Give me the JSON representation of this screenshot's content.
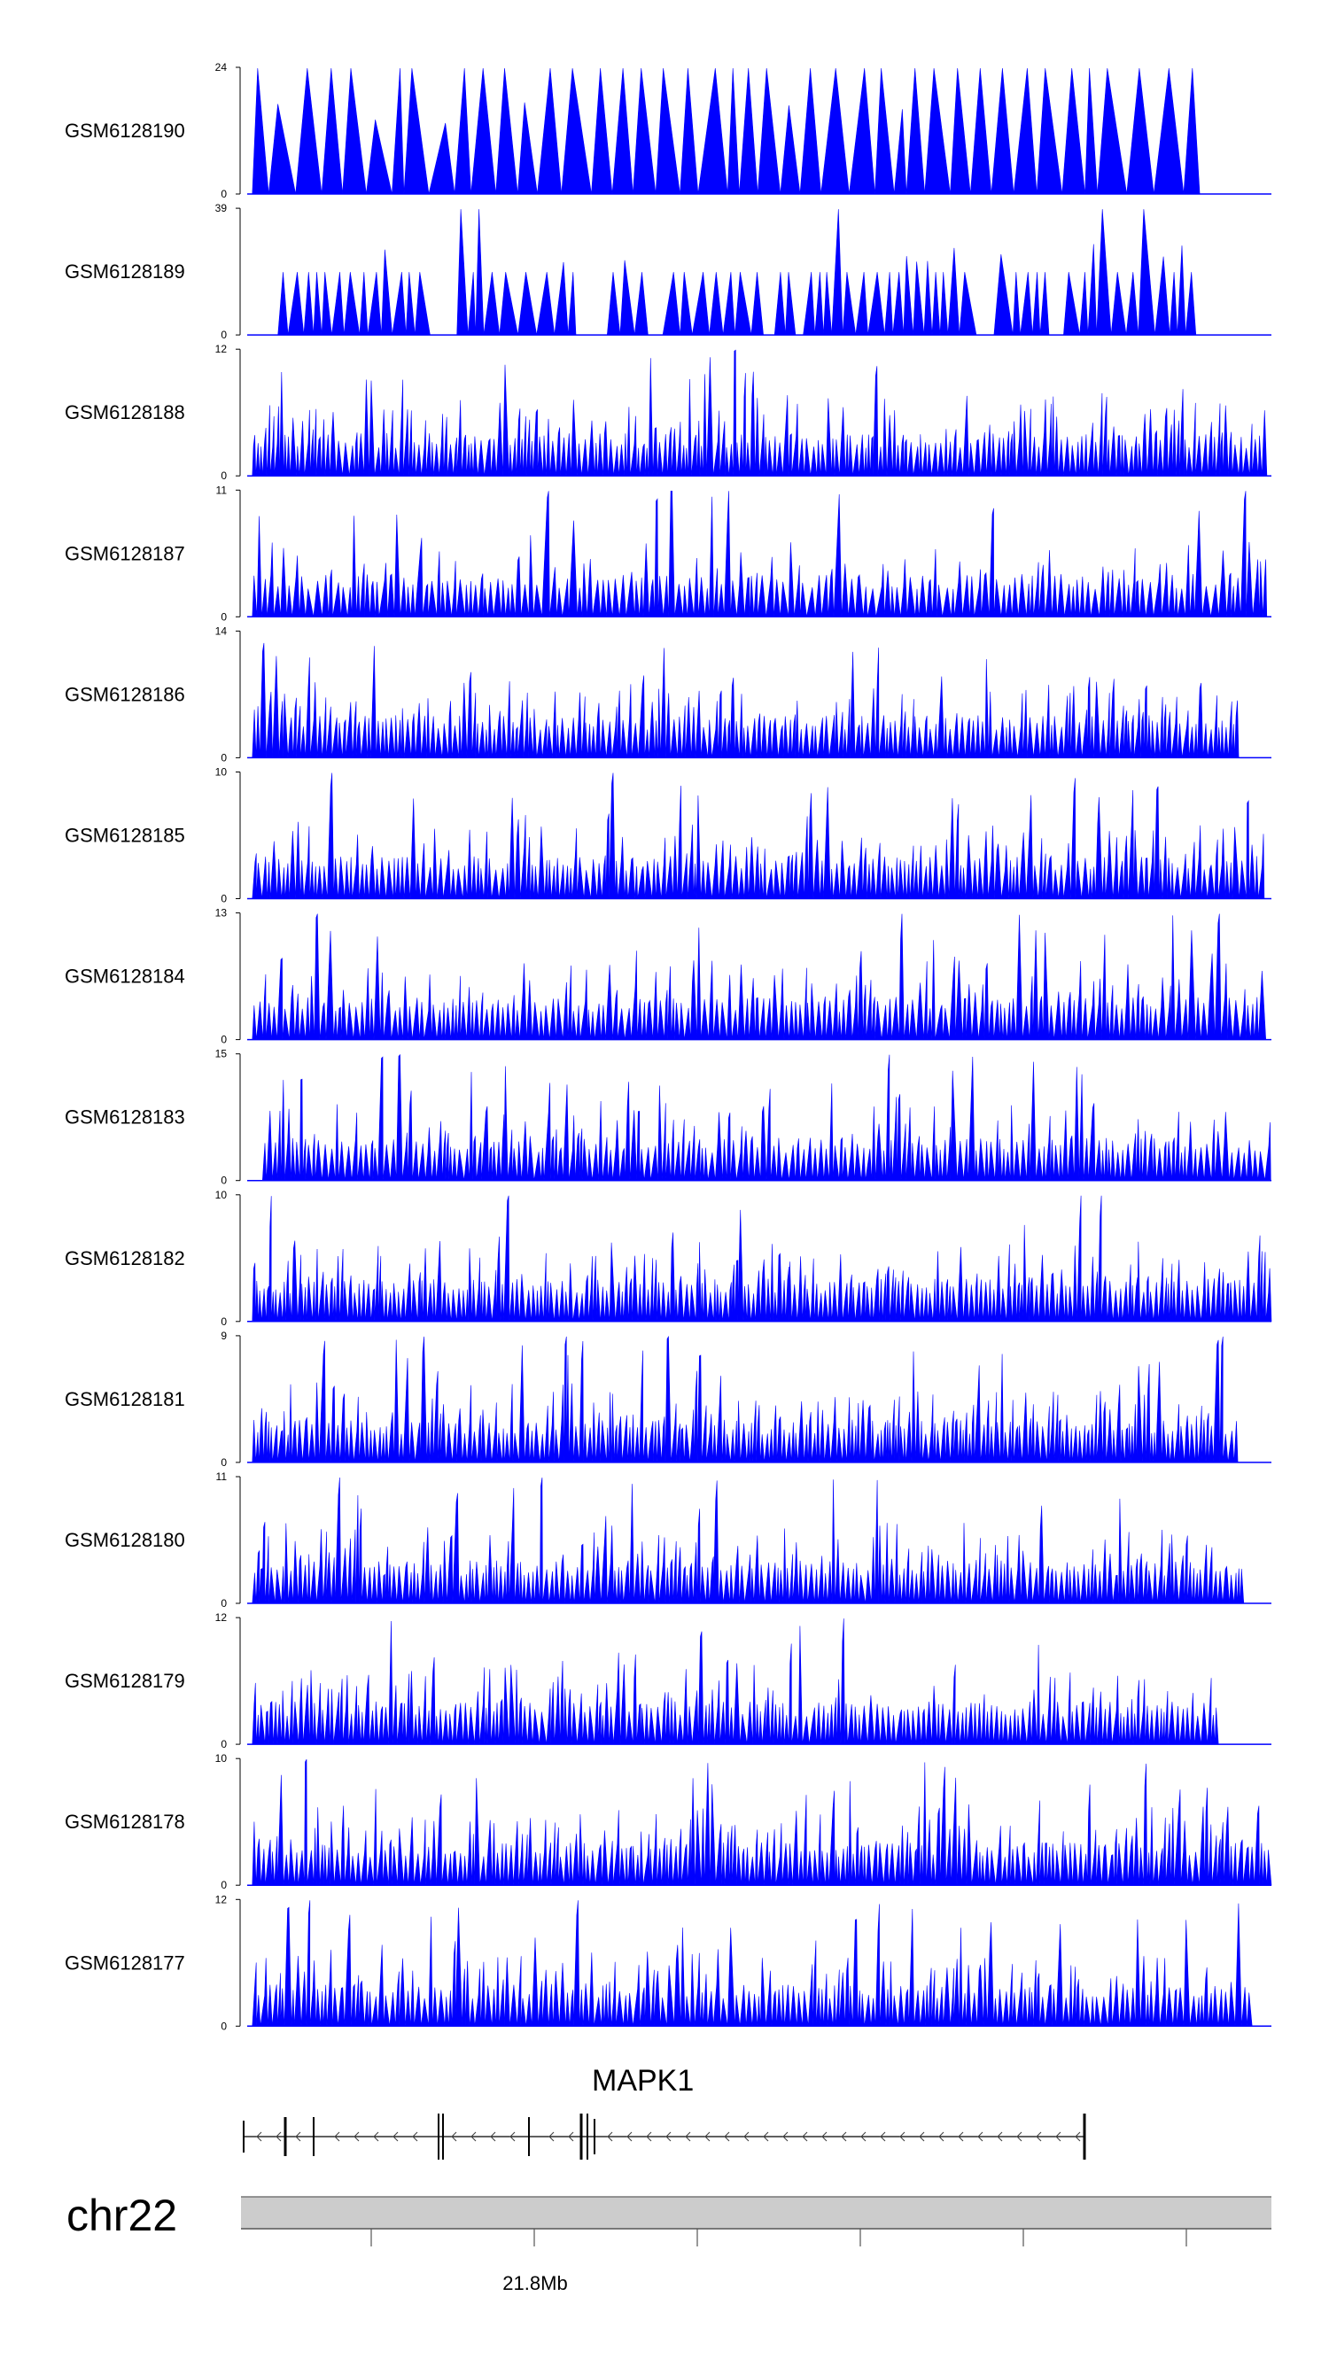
{
  "chart_data": {
    "type": "area",
    "description_note": "Genome browser coverage tracks",
    "color": "#0000ff",
    "tracks": [
      {
        "name": "GSM6128190",
        "ymax": 24,
        "ymin": 0,
        "start_frac": 0.005,
        "end_frac": 0.93,
        "peaks": 60,
        "seed": 11,
        "style": "wide"
      },
      {
        "name": "GSM6128189",
        "ymax": 39,
        "ymin": 0,
        "start_frac": 0.03,
        "end_frac": 0.995,
        "peaks": 75,
        "seed": 23,
        "style": "medium"
      },
      {
        "name": "GSM6128188",
        "ymax": 12,
        "ymin": 0,
        "start_frac": 0.005,
        "end_frac": 1.0,
        "peaks": 220,
        "seed": 37,
        "style": "dense"
      },
      {
        "name": "GSM6128187",
        "ymax": 11,
        "ymin": 0,
        "start_frac": 0.005,
        "end_frac": 1.0,
        "peaks": 170,
        "seed": 41,
        "style": "dense"
      },
      {
        "name": "GSM6128186",
        "ymax": 14,
        "ymin": 0,
        "start_frac": 0.005,
        "end_frac": 1.0,
        "peaks": 210,
        "seed": 53,
        "style": "dense"
      },
      {
        "name": "GSM6128185",
        "ymax": 10,
        "ymin": 0,
        "start_frac": 0.005,
        "end_frac": 1.0,
        "peaks": 200,
        "seed": 61,
        "style": "dense"
      },
      {
        "name": "GSM6128184",
        "ymax": 13,
        "ymin": 0,
        "start_frac": 0.005,
        "end_frac": 1.0,
        "peaks": 190,
        "seed": 71,
        "style": "dense"
      },
      {
        "name": "GSM6128183",
        "ymax": 15,
        "ymin": 0,
        "start_frac": 0.015,
        "end_frac": 1.0,
        "peaks": 200,
        "seed": 83,
        "style": "dense"
      },
      {
        "name": "GSM6128182",
        "ymax": 10,
        "ymin": 0,
        "start_frac": 0.005,
        "end_frac": 1.0,
        "peaks": 240,
        "seed": 97,
        "style": "dense"
      },
      {
        "name": "GSM6128181",
        "ymax": 9,
        "ymin": 0,
        "start_frac": 0.005,
        "end_frac": 1.0,
        "peaks": 230,
        "seed": 101,
        "style": "dense"
      },
      {
        "name": "GSM6128180",
        "ymax": 11,
        "ymin": 0,
        "start_frac": 0.005,
        "end_frac": 1.0,
        "peaks": 220,
        "seed": 113,
        "style": "dense"
      },
      {
        "name": "GSM6128179",
        "ymax": 12,
        "ymin": 0,
        "start_frac": 0.005,
        "end_frac": 1.0,
        "peaks": 210,
        "seed": 127,
        "style": "dense"
      },
      {
        "name": "GSM6128178",
        "ymax": 10,
        "ymin": 0,
        "start_frac": 0.005,
        "end_frac": 1.0,
        "peaks": 220,
        "seed": 131,
        "style": "dense"
      },
      {
        "name": "GSM6128177",
        "ymax": 12,
        "ymin": 0,
        "start_frac": 0.005,
        "end_frac": 1.0,
        "peaks": 200,
        "seed": 139,
        "style": "dense"
      }
    ],
    "gene": {
      "name": "MAPK1",
      "strand": "-"
    },
    "chromosome": "chr22",
    "axis": {
      "labeled_tick": "21.8Mb",
      "tick_count": 6
    }
  }
}
